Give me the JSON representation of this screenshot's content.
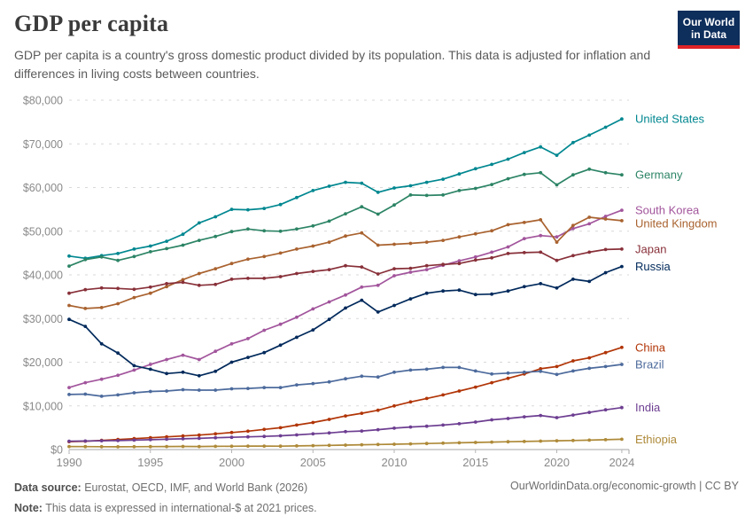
{
  "header": {
    "title": "GDP per capita",
    "subtitle": "GDP per capita is a country's gross domestic product divided by its population. This data is adjusted for inflation and differences in living costs between countries.",
    "logo": {
      "line1": "Our World",
      "line2": "in Data",
      "bg_color": "#0E2E5C",
      "stripe_color": "#DF2327"
    }
  },
  "footer": {
    "source_label": "Data source:",
    "source_text": " Eurostat, OECD, IMF, and World Bank (2026)",
    "note_label": "Note:",
    "note_text": " This data is expressed in international-$ at 2021 prices.",
    "link": "OurWorldinData.org/economic-growth | CC BY"
  },
  "chart_data": {
    "type": "line",
    "title": "GDP per capita",
    "ylabel": "",
    "xlabel": "",
    "unit_prefix": "$",
    "ylim": [
      0,
      80000
    ],
    "y_ticks": [
      0,
      10000,
      20000,
      30000,
      40000,
      50000,
      60000,
      70000,
      80000
    ],
    "x_ticks": [
      1990,
      1995,
      2000,
      2005,
      2010,
      2015,
      2020,
      2024
    ],
    "grid": "horizontal-dashed",
    "legend_position": "end-of-line-labels",
    "marker": "point",
    "x": [
      1990,
      1991,
      1992,
      1993,
      1994,
      1995,
      1996,
      1997,
      1998,
      1999,
      2000,
      2001,
      2002,
      2003,
      2004,
      2005,
      2006,
      2007,
      2008,
      2009,
      2010,
      2011,
      2012,
      2013,
      2014,
      2015,
      2016,
      2017,
      2018,
      2019,
      2020,
      2021,
      2022,
      2023,
      2024
    ],
    "series": [
      {
        "name": "United States",
        "color": "#008790",
        "values": [
          44300,
          43800,
          44400,
          44900,
          45900,
          46600,
          47700,
          49300,
          51900,
          53300,
          55000,
          54900,
          55200,
          56100,
          57700,
          59300,
          60300,
          61200,
          61000,
          58900,
          59900,
          60400,
          61200,
          61900,
          63100,
          64300,
          65300,
          66500,
          68000,
          69300,
          67400,
          70300,
          72000,
          73800,
          75700
        ]
      },
      {
        "name": "Germany",
        "color": "#2C8465",
        "values": [
          42000,
          43500,
          44100,
          43300,
          44200,
          45300,
          46000,
          46800,
          47900,
          48800,
          49900,
          50500,
          50100,
          50000,
          50500,
          51200,
          52300,
          54000,
          55600,
          53900,
          56000,
          58300,
          58200,
          58300,
          59300,
          59800,
          60700,
          62000,
          63000,
          63400,
          60600,
          62900,
          64200,
          63400,
          62900
        ]
      },
      {
        "name": "South Korea",
        "color": "#A2559C",
        "values": [
          14200,
          15300,
          16100,
          17000,
          18200,
          19500,
          20600,
          21600,
          20600,
          22500,
          24200,
          25400,
          27300,
          28700,
          30300,
          32200,
          33800,
          35400,
          37200,
          37600,
          39800,
          40600,
          41200,
          42200,
          43200,
          44100,
          45200,
          46400,
          48300,
          49000,
          48700,
          50600,
          51700,
          53400,
          54800
        ]
      },
      {
        "name": "United Kingdom",
        "color": "#A9622F",
        "values": [
          33000,
          32300,
          32500,
          33400,
          34800,
          35800,
          37300,
          38900,
          40300,
          41400,
          42600,
          43600,
          44200,
          45000,
          45900,
          46600,
          47500,
          48900,
          49600,
          46800,
          47000,
          47200,
          47500,
          47900,
          48700,
          49400,
          50100,
          51500,
          52000,
          52600,
          47500,
          51300,
          53200,
          52800,
          52400
        ]
      },
      {
        "name": "Japan",
        "color": "#883039",
        "values": [
          35800,
          36600,
          37000,
          36900,
          36700,
          37200,
          38000,
          38300,
          37600,
          37800,
          39000,
          39200,
          39200,
          39600,
          40300,
          40800,
          41200,
          42100,
          41800,
          40200,
          41400,
          41500,
          42100,
          42400,
          42600,
          43400,
          43900,
          44900,
          45100,
          45200,
          43300,
          44400,
          45200,
          45800,
          45900
        ]
      },
      {
        "name": "Russia",
        "color": "#00295B",
        "values": [
          29800,
          28200,
          24200,
          22100,
          19200,
          18400,
          17400,
          17700,
          16900,
          17900,
          20000,
          21100,
          22200,
          23900,
          25700,
          27400,
          29800,
          32400,
          34200,
          31500,
          33000,
          34500,
          35800,
          36300,
          36500,
          35500,
          35600,
          36300,
          37300,
          38000,
          37000,
          39000,
          38500,
          40500,
          41900
        ]
      },
      {
        "name": "China",
        "color": "#B13507",
        "values": [
          1800,
          1900,
          2100,
          2300,
          2500,
          2700,
          2900,
          3100,
          3300,
          3600,
          3900,
          4200,
          4600,
          5000,
          5600,
          6200,
          6900,
          7700,
          8300,
          9000,
          10000,
          10900,
          11700,
          12500,
          13400,
          14300,
          15300,
          16300,
          17300,
          18500,
          19000,
          20300,
          21000,
          22200,
          23400
        ]
      },
      {
        "name": "Brazil",
        "color": "#4C6A9C",
        "values": [
          12600,
          12700,
          12200,
          12500,
          13000,
          13300,
          13400,
          13700,
          13600,
          13600,
          13900,
          14000,
          14200,
          14200,
          14800,
          15100,
          15500,
          16200,
          16800,
          16600,
          17700,
          18200,
          18400,
          18800,
          18800,
          18000,
          17300,
          17500,
          17700,
          17900,
          17200,
          18000,
          18600,
          19000,
          19500
        ]
      },
      {
        "name": "India",
        "color": "#6D3E91",
        "values": [
          1900,
          1950,
          2000,
          2050,
          2150,
          2250,
          2350,
          2450,
          2550,
          2700,
          2800,
          2900,
          3000,
          3150,
          3350,
          3600,
          3800,
          4100,
          4250,
          4550,
          4900,
          5150,
          5350,
          5600,
          5900,
          6300,
          6800,
          7100,
          7500,
          7800,
          7300,
          7900,
          8500,
          9100,
          9600
        ]
      },
      {
        "name": "Ethiopia",
        "color": "#AE8A39",
        "values": [
          700,
          680,
          650,
          630,
          650,
          670,
          700,
          720,
          700,
          730,
          760,
          790,
          790,
          770,
          840,
          900,
          960,
          1020,
          1090,
          1150,
          1220,
          1300,
          1380,
          1460,
          1540,
          1620,
          1700,
          1780,
          1850,
          1930,
          2000,
          2080,
          2160,
          2250,
          2350
        ]
      }
    ]
  }
}
